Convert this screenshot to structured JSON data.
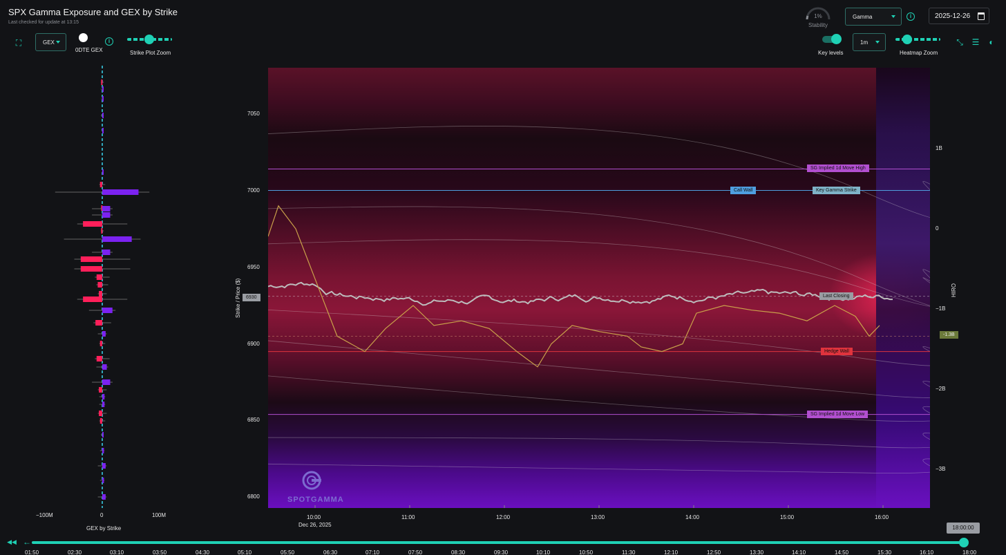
{
  "header": {
    "title": "SPX Gamma Exposure and GEX by Strike",
    "subtitle": "Last checked for update at 13:15"
  },
  "stability": {
    "percent": "1%",
    "label": "Stability",
    "value": 0.01
  },
  "type_select": {
    "value": "Gamma"
  },
  "date": {
    "value": "2025-12-26"
  },
  "left_controls": {
    "gex_select": "GEX",
    "zero_dte_label": "0DTE GEX",
    "zoom_label": "Strike Plot Zoom",
    "zoom_level": 0.5
  },
  "right_controls": {
    "key_levels_label": "Key levels",
    "key_levels_on": true,
    "interval_select": "1m",
    "heatmap_zoom_label": "Heatmap Zoom",
    "heatmap_zoom_level": 0.3
  },
  "gex_chart": {
    "xlabel": "GEX by Strike",
    "ticks": [
      "−100M",
      "0",
      "100M"
    ],
    "colors": {
      "positive": "#7b22f0",
      "negative": "#ff1f5a",
      "spot": "#3ad7f0"
    }
  },
  "chart_data": {
    "type": "heatmap",
    "ylabel": "Strike / Price ($)",
    "y2label": "HIRO",
    "y_ticks": [
      "7050",
      "7000",
      "6950",
      "6900",
      "6850",
      "6800"
    ],
    "y2_ticks": [
      "1B",
      "0",
      "−1B",
      "−2B",
      "−3B"
    ],
    "x_ticks": [
      "10:00",
      "11:00",
      "12:00",
      "13:00",
      "14:00",
      "15:00",
      "16:00"
    ],
    "x_date_label": "Dec 26, 2025",
    "ylim": [
      6793,
      7080
    ],
    "levels": {
      "implied_high": {
        "label": "SG Implied 1d Move High",
        "price": 7014
      },
      "call_wall": {
        "label": "Call Wall",
        "price": 7000
      },
      "key_gamma": {
        "label": "Key Gamma Strike",
        "price": 7000
      },
      "last_closing": {
        "label": "Last Closing",
        "price": 6931
      },
      "hedge_wall": {
        "label": "Hedge Wall",
        "price": 6895
      },
      "implied_low": {
        "label": "SG Implied 1d Move Low",
        "price": 6854
      }
    },
    "current_price_tag": "6930",
    "hiro_tag": "-1.3B",
    "colors": {
      "implied": "#b24fd0",
      "call_wall": "#4f9fe0",
      "hedge_wall": "#e0333d",
      "price_line": "#bdbdbd",
      "hiro_line": "#c9a14a"
    }
  },
  "watermark": {
    "text": "SPOTGAMMA"
  },
  "timeline": {
    "current": "18:00:00",
    "labels": [
      "01:50",
      "02:30",
      "03:10",
      "03:50",
      "04:30",
      "05:10",
      "05:50",
      "06:30",
      "07:10",
      "07:50",
      "08:30",
      "09:30",
      "10:10",
      "10:50",
      "11:30",
      "12:10",
      "12:50",
      "13:30",
      "14:10",
      "14:50",
      "15:30",
      "16:10",
      "18:00"
    ]
  }
}
